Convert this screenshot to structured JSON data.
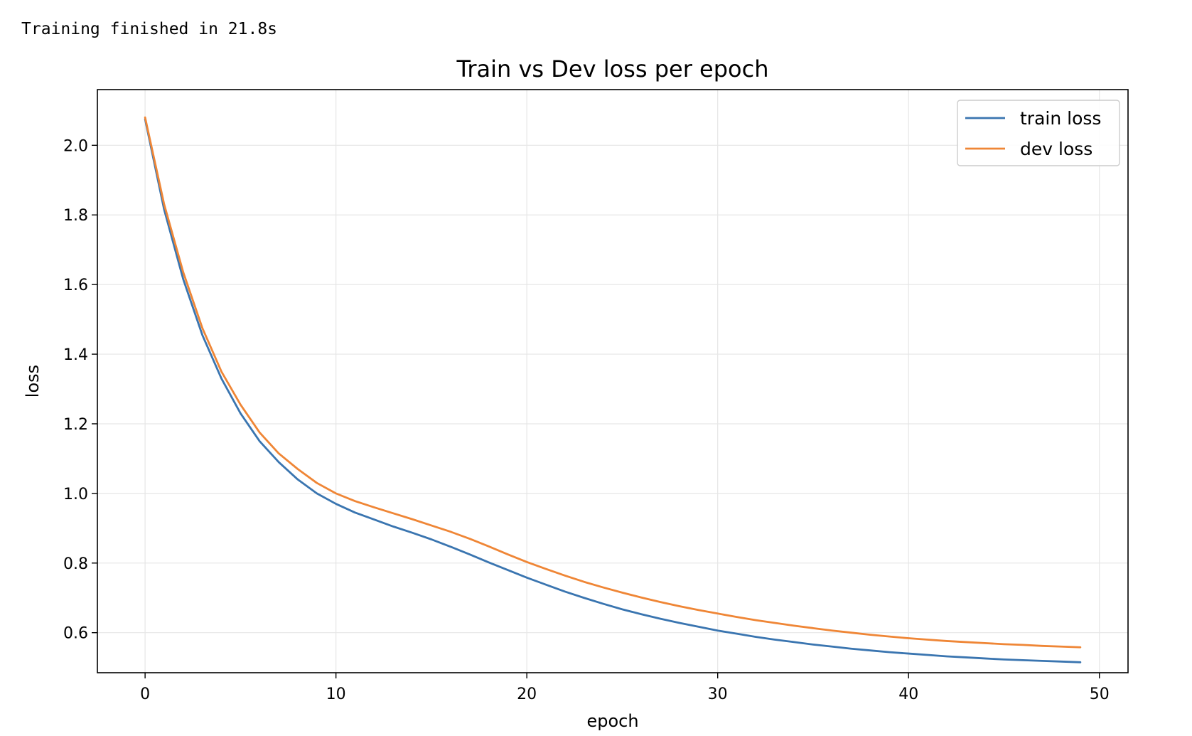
{
  "output": {
    "status_text": "Training finished in 21.8s"
  },
  "chart_data": {
    "type": "line",
    "title": "Train vs Dev loss per epoch",
    "xlabel": "epoch",
    "ylabel": "loss",
    "xlim": [
      -2.5,
      51.5
    ],
    "ylim": [
      0.485,
      2.16
    ],
    "xticks": [
      0,
      10,
      20,
      30,
      40,
      50
    ],
    "xtick_labels": [
      "0",
      "10",
      "20",
      "30",
      "40",
      "50"
    ],
    "yticks": [
      0.6,
      0.8,
      1.0,
      1.2,
      1.4,
      1.6,
      1.8,
      2.0
    ],
    "ytick_labels": [
      "0.6",
      "0.8",
      "1.0",
      "1.2",
      "1.4",
      "1.6",
      "1.8",
      "2.0"
    ],
    "grid": true,
    "legend_position": "top-right",
    "x": [
      0,
      1,
      2,
      3,
      4,
      5,
      6,
      7,
      8,
      9,
      10,
      11,
      12,
      13,
      14,
      15,
      16,
      17,
      18,
      19,
      20,
      21,
      22,
      23,
      24,
      25,
      26,
      27,
      28,
      29,
      30,
      31,
      32,
      33,
      34,
      35,
      36,
      37,
      38,
      39,
      40,
      41,
      42,
      43,
      44,
      45,
      46,
      47,
      48,
      49
    ],
    "series": [
      {
        "name": "train loss",
        "color": "#3a75b0",
        "values": [
          2.075,
          1.815,
          1.615,
          1.455,
          1.33,
          1.23,
          1.15,
          1.09,
          1.04,
          1.0,
          0.97,
          0.945,
          0.925,
          0.905,
          0.887,
          0.868,
          0.847,
          0.825,
          0.802,
          0.78,
          0.758,
          0.738,
          0.718,
          0.7,
          0.683,
          0.667,
          0.653,
          0.64,
          0.628,
          0.617,
          0.606,
          0.597,
          0.588,
          0.58,
          0.573,
          0.566,
          0.56,
          0.554,
          0.549,
          0.544,
          0.54,
          0.536,
          0.532,
          0.529,
          0.526,
          0.523,
          0.521,
          0.519,
          0.517,
          0.515
        ]
      },
      {
        "name": "dev loss",
        "color": "#ef8636",
        "values": [
          2.08,
          1.83,
          1.635,
          1.475,
          1.35,
          1.255,
          1.175,
          1.115,
          1.07,
          1.03,
          1.0,
          0.978,
          0.96,
          0.943,
          0.926,
          0.908,
          0.89,
          0.87,
          0.848,
          0.825,
          0.803,
          0.783,
          0.764,
          0.746,
          0.73,
          0.715,
          0.701,
          0.688,
          0.676,
          0.665,
          0.655,
          0.645,
          0.636,
          0.628,
          0.62,
          0.613,
          0.606,
          0.6,
          0.594,
          0.589,
          0.584,
          0.58,
          0.576,
          0.573,
          0.57,
          0.567,
          0.565,
          0.562,
          0.56,
          0.558
        ]
      }
    ]
  }
}
